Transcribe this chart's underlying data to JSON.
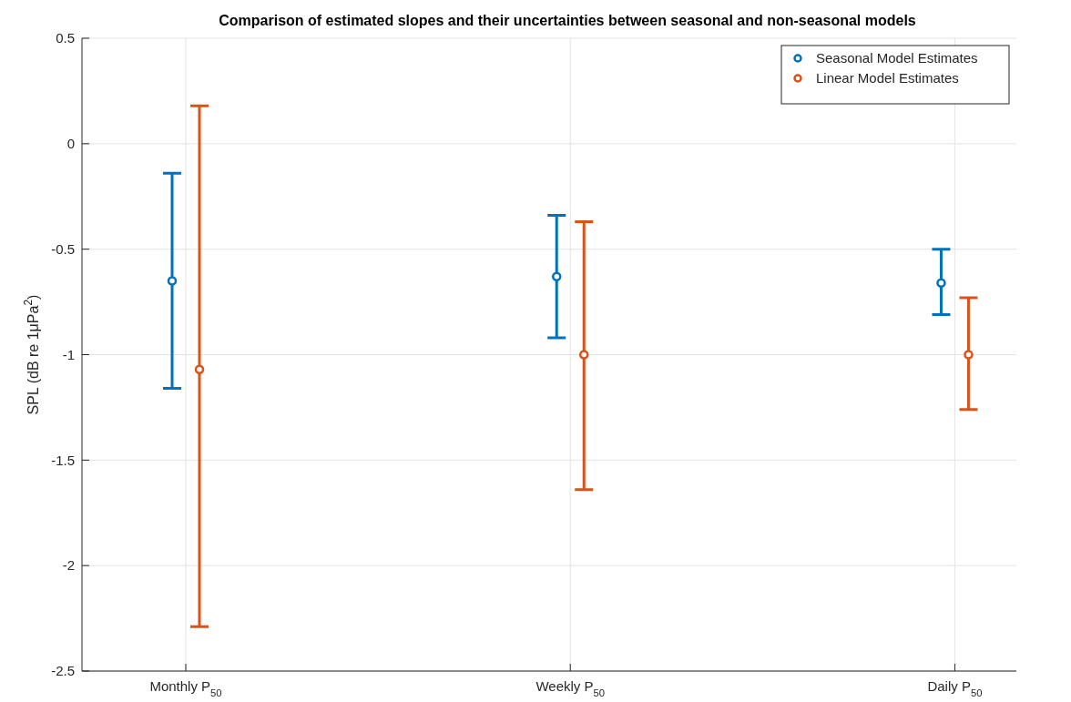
{
  "chart_data": {
    "type": "scatter",
    "title": "Comparison of estimated slopes and their uncertainties between seasonal and non-seasonal models",
    "ylabel": "SPL (dB re 1μPa$^{2}$)",
    "categories": [
      "Monthly P$_{50}$",
      "Weekly P$_{50}$",
      "Daily P$_{50}$"
    ],
    "series": [
      {
        "name": "Seasonal Model Estimates",
        "color": "#0072bd",
        "values": [
          -0.65,
          -0.63,
          -0.66
        ],
        "errors": [
          [
            -1.16,
            -0.14
          ],
          [
            -0.92,
            -0.34
          ],
          [
            -0.81,
            -0.5
          ]
        ]
      },
      {
        "name": "Linear Model Estimates",
        "color": "#d95319",
        "values": [
          -1.07,
          -1.0,
          -1.0
        ],
        "errors": [
          [
            -2.29,
            0.18
          ],
          [
            -1.64,
            -0.37
          ],
          [
            -1.26,
            -0.73
          ]
        ]
      }
    ],
    "ylim": [
      -2.5,
      0.5
    ],
    "yticks": [
      -2.5,
      -2,
      -1.5,
      -1,
      -0.5,
      0,
      0.5
    ],
    "grid": true,
    "legend": "top right",
    "marker": "circle"
  }
}
